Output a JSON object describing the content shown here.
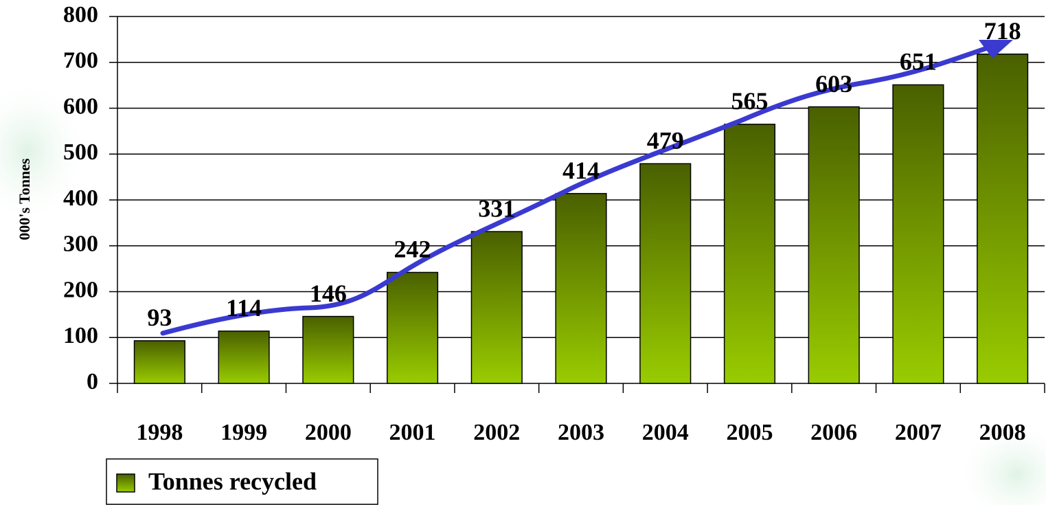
{
  "chart_data": {
    "type": "bar",
    "y_label": "000's Tonnes",
    "categories": [
      "1998",
      "1999",
      "2000",
      "2001",
      "2002",
      "2003",
      "2004",
      "2005",
      "2006",
      "2007",
      "2008"
    ],
    "series": [
      {
        "name": "Tonnes recycled",
        "color": "#99cc00",
        "values": [
          93,
          114,
          146,
          242,
          331,
          414,
          479,
          565,
          603,
          651,
          718
        ]
      }
    ],
    "ylim": [
      0,
      800
    ],
    "yticks": [
      0,
      100,
      200,
      300,
      400,
      500,
      600,
      700,
      800
    ],
    "grid": true,
    "legend": "bottom-left"
  }
}
